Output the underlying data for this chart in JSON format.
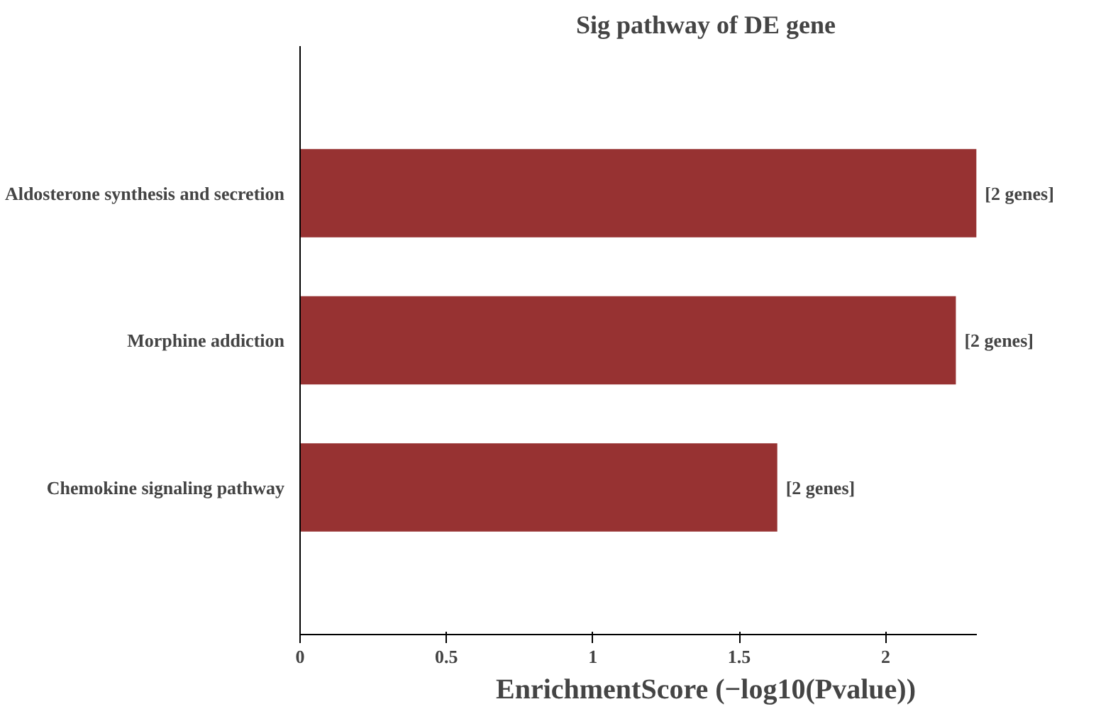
{
  "chart_data": {
    "type": "bar",
    "orientation": "horizontal",
    "title": "Sig pathway of DE gene",
    "xlabel": "EnrichmentScore (−log10(Pvalue))",
    "categories": [
      "Aldosterone synthesis and secretion",
      "Morphine addiction",
      "Chemokine signaling pathway"
    ],
    "values": [
      2.31,
      2.24,
      1.63
    ],
    "color": "#973232",
    "xlim": [
      0,
      2.31
    ],
    "xticks": [
      0,
      0.5,
      1,
      1.5,
      2
    ],
    "grid": false,
    "annotations": [
      {
        "text": "[2 genes]",
        "x": 2.31,
        "y": "Aldosterone synthesis and secretion"
      },
      {
        "text": "[2 genes]",
        "x": 2.24,
        "y": "Morphine addiction"
      },
      {
        "text": "[2 genes]",
        "x": 1.63,
        "y": "Chemokine signaling pathway"
      }
    ]
  }
}
